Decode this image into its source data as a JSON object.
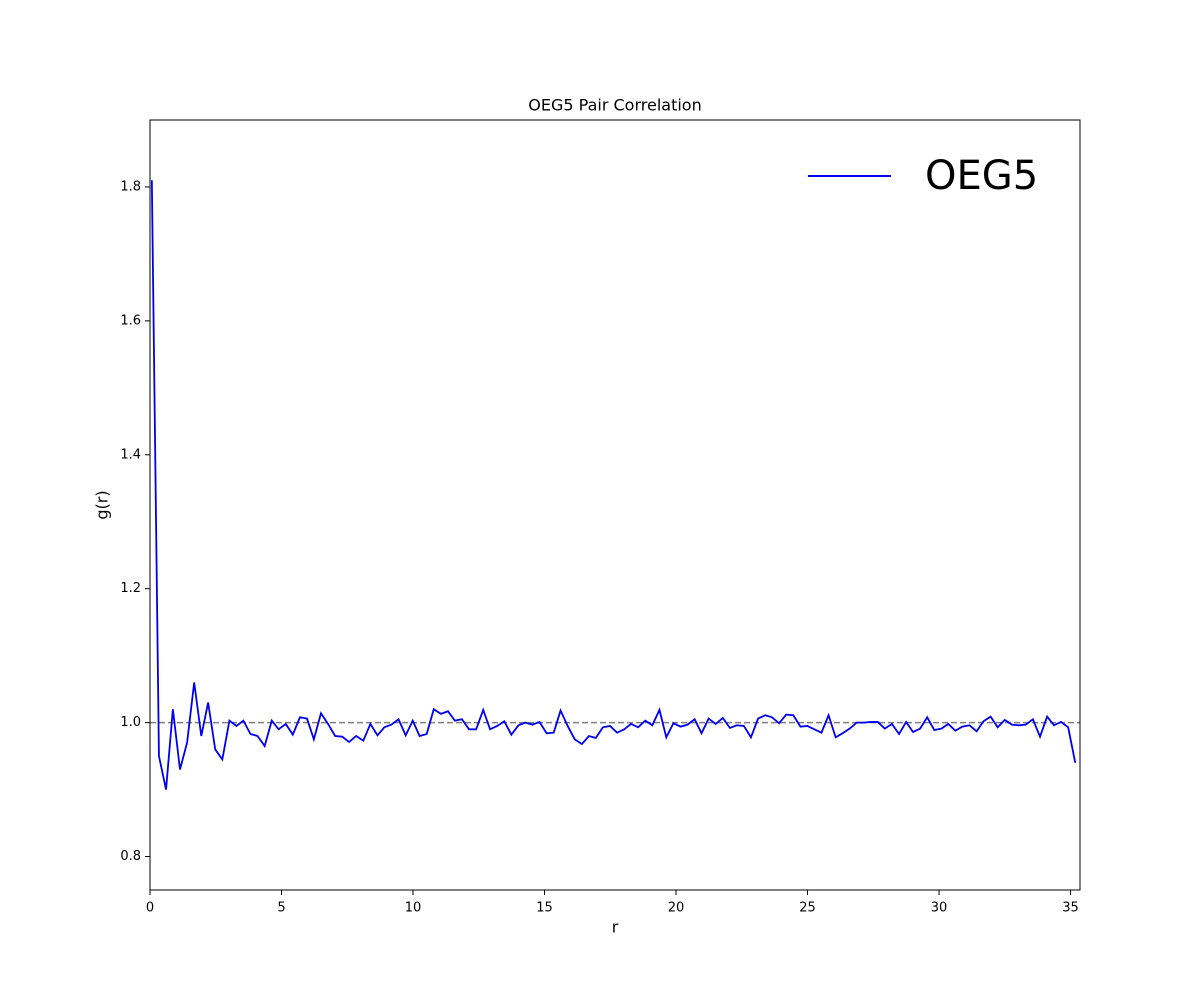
{
  "chart_data": {
    "type": "line",
    "title": "OEG5 Pair Correlation",
    "x_label": "r",
    "y_label": "g(r)",
    "xlim": [
      0,
      35.36
    ],
    "ylim": [
      0.75,
      1.9
    ],
    "xticks": [
      0,
      5,
      10,
      15,
      20,
      25,
      30,
      35
    ],
    "yticks": [
      0.8,
      1.2,
      1.4,
      1.6,
      1.8,
      {
        "value": 1,
        "label": "1.0"
      }
    ],
    "grid": false,
    "legend": "upper right",
    "reference_line": {
      "y": 1,
      "color": "#808080",
      "style": "dashed"
    },
    "x": [
      0.07,
      0.34,
      0.61,
      0.87,
      1.14,
      1.41,
      1.68,
      1.95,
      2.21,
      2.48,
      2.75,
      3.02,
      3.29,
      3.55,
      3.82,
      4.09,
      4.36,
      4.63,
      4.89,
      5.16,
      5.43,
      5.7,
      5.97,
      6.23,
      6.5,
      6.77,
      7.04,
      7.31,
      7.57,
      7.84,
      8.11,
      8.38,
      8.65,
      8.91,
      9.18,
      9.45,
      9.72,
      9.99,
      10.25,
      10.52,
      10.79,
      11.06,
      11.33,
      11.59,
      11.86,
      12.13,
      12.4,
      12.67,
      12.93,
      13.2,
      13.47,
      13.74,
      14.01,
      14.27,
      14.54,
      14.81,
      15.08,
      15.35,
      15.61,
      15.88,
      16.15,
      16.42,
      16.69,
      16.95,
      17.22,
      17.49,
      17.76,
      18.03,
      18.29,
      18.56,
      18.83,
      19.1,
      19.37,
      19.63,
      19.9,
      20.17,
      20.44,
      20.71,
      20.97,
      21.24,
      21.51,
      21.78,
      22.05,
      22.31,
      22.58,
      22.85,
      23.12,
      23.39,
      23.65,
      23.92,
      24.19,
      24.46,
      24.73,
      24.99,
      25.26,
      25.53,
      25.8,
      26.07,
      26.33,
      26.6,
      26.87,
      27.14,
      27.41,
      27.67,
      27.94,
      28.21,
      28.48,
      28.75,
      29.01,
      29.28,
      29.55,
      29.82,
      30.09,
      30.35,
      30.62,
      30.89,
      31.16,
      31.43,
      31.69,
      31.96,
      32.23,
      32.5,
      32.77,
      33.03,
      33.3,
      33.57,
      33.84,
      34.11,
      34.37,
      34.64,
      34.91,
      35.18
    ],
    "series": [
      {
        "name": "OEG5",
        "color": "#0000ee",
        "values": [
          1.81,
          0.95,
          0.9,
          1.02,
          0.93,
          0.97,
          1.06,
          0.98,
          1.03,
          0.96,
          0.945,
          1.003,
          0.995,
          1.003,
          0.983,
          0.98,
          0.965,
          1.003,
          0.99,
          0.998,
          0.982,
          1.008,
          1.006,
          0.975,
          1.014,
          0.998,
          0.98,
          0.979,
          0.971,
          0.98,
          0.973,
          0.998,
          0.981,
          0.993,
          0.997,
          1.005,
          0.981,
          1.003,
          0.98,
          0.983,
          1.02,
          1.013,
          1.017,
          1.003,
          1.005,
          0.99,
          0.99,
          1.019,
          0.99,
          0.995,
          1.002,
          0.982,
          0.996,
          1.0,
          0.997,
          1.001,
          0.984,
          0.985,
          1.018,
          0.995,
          0.975,
          0.968,
          0.98,
          0.977,
          0.993,
          0.995,
          0.985,
          0.99,
          0.998,
          0.993,
          1.003,
          0.996,
          1.019,
          0.978,
          0.999,
          0.994,
          0.997,
          1.005,
          0.984,
          1.006,
          0.998,
          1.007,
          0.992,
          0.996,
          0.995,
          0.978,
          1.006,
          1.011,
          1.008,
          0.999,
          1.012,
          1.011,
          0.994,
          0.995,
          0.99,
          0.985,
          1.011,
          0.978,
          0.984,
          0.991,
          1.0,
          1.0,
          1.001,
          1.001,
          0.991,
          0.998,
          0.983,
          1.001,
          0.986,
          0.991,
          1.008,
          0.989,
          0.991,
          0.998,
          0.988,
          0.994,
          0.996,
          0.987,
          1.002,
          1.009,
          0.993,
          1.004,
          0.997,
          0.996,
          0.997,
          1.005,
          0.979,
          1.009,
          0.996,
          1.001,
          0.993,
          0.94
        ]
      }
    ]
  }
}
